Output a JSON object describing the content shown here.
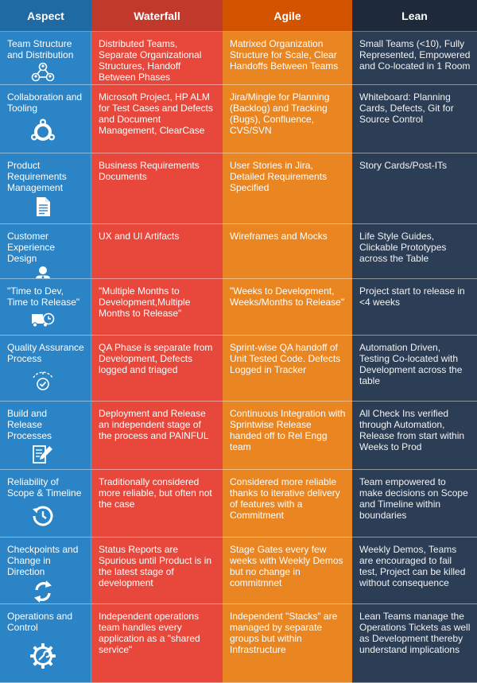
{
  "headers": {
    "aspect": "Aspect",
    "waterfall": "Waterfall",
    "agile": "Agile",
    "lean": "Lean"
  },
  "rows": [
    {
      "aspect": "Team Structure and Distribution",
      "icon": "team-icon",
      "waterfall": "Distributed Teams, Separate Organizational Structures, Handoff Between Phases",
      "agile": "Matrixed Organization Structure for Scale, Clear Handoffs Between Teams",
      "lean": "Small Teams (<10), Fully Represented, Empowered and Co-located in 1 Room"
    },
    {
      "aspect": "Collaboration and Tooling",
      "icon": "ubuntu-icon",
      "waterfall": "Microsoft Project, HP ALM for Test Cases and Defects and Document Management, ClearCase",
      "agile": "Jira/Mingle for Planning (Backlog) and Tracking (Bugs), Confluence, CVS/SVN",
      "lean": "Whiteboard: Planning Cards, Defects, Git for Source Control"
    },
    {
      "aspect": "Product Requirements Management",
      "icon": "document-icon",
      "waterfall": "Business Requirements Documents",
      "agile": "User Stories in Jira, Detailed Requirements Specified",
      "lean": "Story Cards/Post-ITs"
    },
    {
      "aspect": "Customer Experience Design",
      "icon": "user-icon",
      "waterfall": "UX and UI Artifacts",
      "agile": "Wireframes and Mocks",
      "lean": "Life Style Guides, Clickable Prototypes across the Table"
    },
    {
      "aspect": "\"Time to Dev, Time to Release\"",
      "icon": "delivery-truck-icon",
      "waterfall": "\"Multiple Months to Development,Multiple Months to Release\"",
      "agile": "\"Weeks to Development, Weeks/Months to Release\"",
      "lean": "Project start to release in <4 weeks"
    },
    {
      "aspect": "Quality Assurance Process",
      "icon": "gauge-check-icon",
      "waterfall": "QA Phase is separate from Development, Defects logged and triaged",
      "agile": "Sprint-wise QA handoff of Unit Tested Code. Defects Logged in Tracker",
      "lean": "Automation Driven, Testing Co-located with Development across the table"
    },
    {
      "aspect": "Build and Release Processes",
      "icon": "edit-document-icon",
      "waterfall": "Deployment and Release an independent stage of the process and PAINFUL",
      "agile": "Continuous Integration with Sprintwise Release handed off to Rel Engg team",
      "lean": "All Check Ins verified through Automation, Release from start within Weeks to Prod"
    },
    {
      "aspect": "Reliability of Scope & Timeline",
      "icon": "history-clock-icon",
      "waterfall": "Traditionally considered more reliable, but often not the case",
      "agile": "Considered more reliable thanks to iterative delivery of features with a Commitment",
      "lean": "Team empowered to make decisions on Scope and Timeline within boundaries"
    },
    {
      "aspect": "Checkpoints and Change in Direction",
      "icon": "refresh-arrows-icon",
      "waterfall": "Status Reports are Spurious until Product is in the latest stage of development",
      "agile": "Stage Gates every few weeks with Weekly Demos but no change in commitmnet",
      "lean": "Weekly Demos, Teams are encouraged to fail test, Project can be killed without consequence"
    },
    {
      "aspect": "Operations and Control",
      "icon": "gear-wrench-icon",
      "waterfall": "Independent operations team handles every application as a \"shared service\"",
      "agile": "Independent \"Stacks\" are managed by separate groups but within Infrastructure",
      "lean": "Lean Teams manage the Operations Tickets as well as Development thereby understand implications"
    }
  ]
}
